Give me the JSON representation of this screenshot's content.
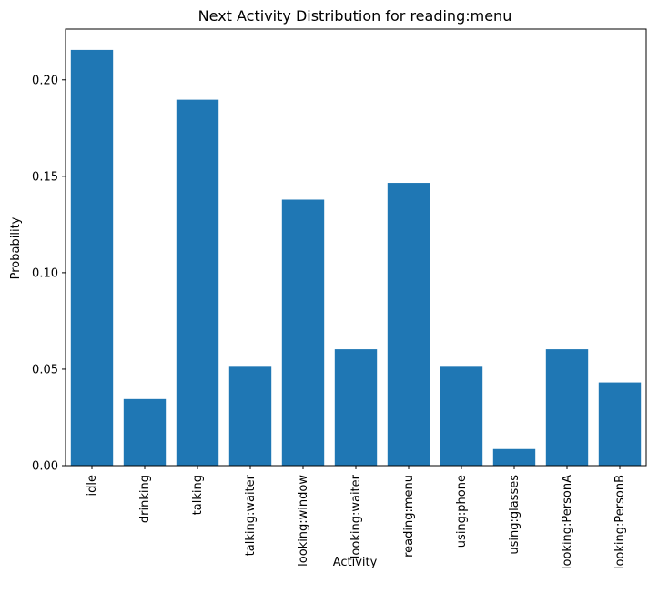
{
  "chart_data": {
    "type": "bar",
    "title": "Next Activity Distribution for reading:menu",
    "xlabel": "Activity",
    "ylabel": "Probability",
    "categories": [
      "idle",
      "drinking",
      "talking",
      "talking:waiter",
      "looking:window",
      "looking:waiter",
      "reading:menu",
      "using:phone",
      "using:glasses",
      "looking:PersonA",
      "looking:PersonB"
    ],
    "values": [
      0.2155,
      0.0345,
      0.1897,
      0.0517,
      0.1379,
      0.0603,
      0.1466,
      0.0517,
      0.0086,
      0.0603,
      0.0431
    ],
    "ylim": [
      0,
      0.2263
    ],
    "yticks": [
      0.0,
      0.05,
      0.1,
      0.15,
      0.2
    ],
    "ytick_labels": [
      "0.00",
      "0.05",
      "0.10",
      "0.15",
      "0.20"
    ],
    "bar_color": "#1f77b4",
    "grid": false,
    "legend": "none"
  }
}
